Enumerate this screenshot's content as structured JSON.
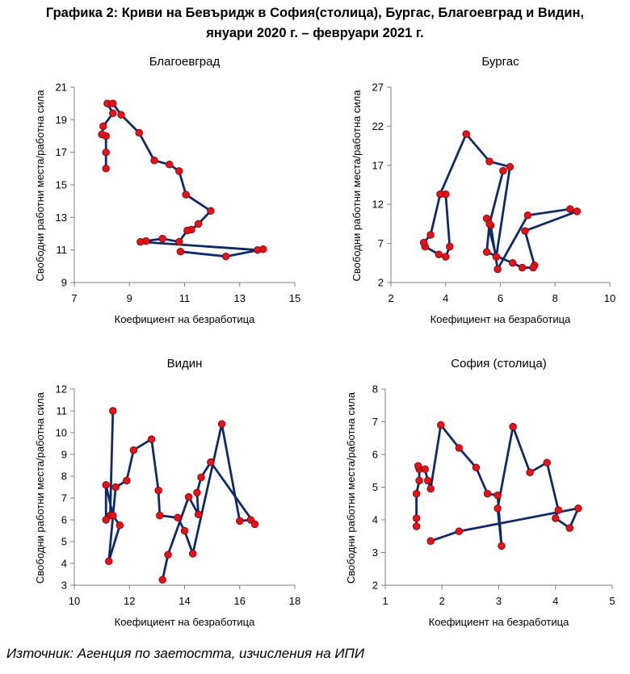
{
  "figure": {
    "title_line1": "Графика 2: Криви на Бевъридж в София(столица), Бургас, Благоевград и Видин,",
    "title_line2": "януари 2020 г. – февруари 2021 г.",
    "source": "Източник: Агенция по заетостта, изчисления на ИПИ"
  },
  "colors": {
    "line": "#102a66",
    "marker_fill": "#e8101a",
    "marker_stroke": "#7a0a0a",
    "axis": "#7f7f7f"
  },
  "chart_data": [
    {
      "type": "line",
      "title": "Благоевград",
      "xlabel": "Коефициент на безработица",
      "ylabel": "Свободни работни места/работна сила",
      "xlim": [
        7,
        15
      ],
      "ylim": [
        9,
        21
      ],
      "xticks": [
        7,
        9,
        11,
        13,
        15
      ],
      "yticks": [
        9,
        11,
        13,
        15,
        17,
        19,
        21
      ],
      "grid": false,
      "markers": true,
      "points": [
        [
          8.15,
          16.0
        ],
        [
          8.15,
          17.0
        ],
        [
          8.15,
          18.0
        ],
        [
          8.0,
          18.1
        ],
        [
          8.05,
          18.6
        ],
        [
          8.4,
          19.4
        ],
        [
          8.2,
          20.0
        ],
        [
          8.4,
          20.0
        ],
        [
          8.7,
          19.3
        ],
        [
          9.35,
          18.2
        ],
        [
          9.9,
          16.5
        ],
        [
          10.45,
          16.25
        ],
        [
          10.8,
          15.85
        ],
        [
          11.05,
          14.4
        ],
        [
          11.95,
          13.4
        ],
        [
          11.5,
          12.6
        ],
        [
          11.25,
          12.25
        ],
        [
          11.1,
          12.2
        ],
        [
          10.8,
          11.5
        ],
        [
          10.2,
          11.7
        ],
        [
          9.6,
          11.55
        ],
        [
          9.4,
          11.5
        ],
        [
          13.65,
          11.0
        ],
        [
          13.85,
          11.05
        ],
        [
          12.5,
          10.6
        ],
        [
          10.85,
          10.9
        ]
      ]
    },
    {
      "type": "line",
      "title": "Бургас",
      "xlabel": "Коефициент на безработица",
      "ylabel": "Свободни работни места/работна сила",
      "xlim": [
        2,
        10
      ],
      "ylim": [
        2,
        27
      ],
      "xticks": [
        2,
        4,
        6,
        8,
        10
      ],
      "yticks": [
        2,
        7,
        12,
        17,
        22,
        27
      ],
      "grid": false,
      "markers": true,
      "points": [
        [
          4.0,
          13.3
        ],
        [
          4.15,
          6.6
        ],
        [
          4.0,
          5.3
        ],
        [
          3.75,
          5.6
        ],
        [
          3.25,
          6.6
        ],
        [
          3.2,
          7.1
        ],
        [
          3.45,
          8.1
        ],
        [
          3.8,
          13.3
        ],
        [
          4.75,
          21.0
        ],
        [
          5.6,
          17.5
        ],
        [
          6.35,
          16.8
        ],
        [
          5.85,
          5.3
        ],
        [
          5.5,
          10.2
        ],
        [
          5.65,
          9.3
        ],
        [
          5.9,
          3.7
        ],
        [
          7.0,
          10.6
        ],
        [
          8.55,
          11.4
        ],
        [
          8.8,
          11.1
        ],
        [
          6.9,
          8.6
        ],
        [
          7.25,
          4.2
        ],
        [
          7.2,
          3.9
        ],
        [
          6.8,
          3.9
        ],
        [
          6.45,
          4.5
        ],
        [
          5.5,
          5.9
        ],
        [
          5.6,
          9.5
        ],
        [
          6.1,
          16.3
        ]
      ]
    },
    {
      "type": "line",
      "title": "Видин",
      "xlabel": "Коефициент на безработица",
      "ylabel": "Свободни работни места/работна сила",
      "xlim": [
        10,
        18
      ],
      "ylim": [
        3,
        12
      ],
      "xticks": [
        10,
        12,
        14,
        16,
        18
      ],
      "yticks": [
        3,
        4,
        5,
        6,
        7,
        8,
        9,
        10,
        11,
        12
      ],
      "grid": false,
      "markers": true,
      "points": [
        [
          11.4,
          11.0
        ],
        [
          11.3,
          6.2
        ],
        [
          11.15,
          6.0
        ],
        [
          11.15,
          7.6
        ],
        [
          11.4,
          6.2
        ],
        [
          11.65,
          5.75
        ],
        [
          11.25,
          4.1
        ],
        [
          11.5,
          7.5
        ],
        [
          11.9,
          7.8
        ],
        [
          12.15,
          9.2
        ],
        [
          12.8,
          9.7
        ],
        [
          13.05,
          7.35
        ],
        [
          13.1,
          6.2
        ],
        [
          13.75,
          6.1
        ],
        [
          14.0,
          5.5
        ],
        [
          14.3,
          4.45
        ],
        [
          15.35,
          10.4
        ],
        [
          16.0,
          5.95
        ],
        [
          16.4,
          6.0
        ],
        [
          16.55,
          5.8
        ],
        [
          14.95,
          8.65
        ],
        [
          14.6,
          7.95
        ],
        [
          14.45,
          7.25
        ],
        [
          14.5,
          6.25
        ],
        [
          14.15,
          7.05
        ],
        [
          13.4,
          4.4
        ],
        [
          13.2,
          3.25
        ]
      ]
    },
    {
      "type": "line",
      "title": "София (столица)",
      "xlabel": "Коефициент на безработица",
      "ylabel": "Свободни работни места/работна сила",
      "xlim": [
        1,
        5
      ],
      "ylim": [
        2,
        8
      ],
      "xticks": [
        1,
        2,
        3,
        4,
        5
      ],
      "yticks": [
        2,
        3,
        4,
        5,
        6,
        7,
        8
      ],
      "grid": false,
      "markers": true,
      "points": [
        [
          1.55,
          3.8
        ],
        [
          1.55,
          4.05
        ],
        [
          1.55,
          4.8
        ],
        [
          1.6,
          5.2
        ],
        [
          1.6,
          5.55
        ],
        [
          1.58,
          5.65
        ],
        [
          1.7,
          5.55
        ],
        [
          1.75,
          5.2
        ],
        [
          1.8,
          4.95
        ],
        [
          1.98,
          6.9
        ],
        [
          2.3,
          6.2
        ],
        [
          2.6,
          5.6
        ],
        [
          2.8,
          4.8
        ],
        [
          2.98,
          4.75
        ],
        [
          3.05,
          3.2
        ],
        [
          2.98,
          4.35
        ],
        [
          3.25,
          6.85
        ],
        [
          3.55,
          5.45
        ],
        [
          3.85,
          5.75
        ],
        [
          4.05,
          4.3
        ],
        [
          4.0,
          4.05
        ],
        [
          4.25,
          3.75
        ],
        [
          4.4,
          4.35
        ],
        [
          2.3,
          3.65
        ],
        [
          1.8,
          3.35
        ]
      ]
    }
  ]
}
